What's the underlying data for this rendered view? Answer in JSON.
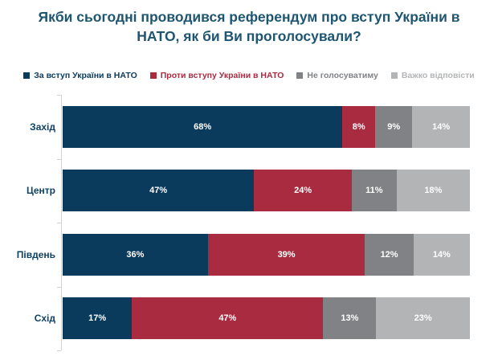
{
  "title": "Якби сьогодні проводився референдум про вступ України в НАТО, як би Ви проголосували?",
  "colors": {
    "title_text": "#1e5570",
    "category_label": "#0d4166",
    "axis": "#d3d3d3",
    "background": "#ffffff",
    "value_label": "#ffffff"
  },
  "chart_data": {
    "type": "bar",
    "stacked": true,
    "orientation": "horizontal",
    "title": "Якби сьогодні проводився референдум про вступ України в НАТО, як би Ви проголосували?",
    "legend_position": "top",
    "grid": false,
    "xlim": [
      0,
      100
    ],
    "value_suffix": "%",
    "categories": [
      "Захід",
      "Центр",
      "Південь",
      "Схід"
    ],
    "series": [
      {
        "name": "За вступ України в НАТО",
        "color": "#0a3a5c",
        "values": [
          68,
          47,
          36,
          17
        ]
      },
      {
        "name": "Проти вступу України в НАТО",
        "color": "#a82b40",
        "values": [
          8,
          24,
          39,
          47
        ]
      },
      {
        "name": "Не голосуватиму",
        "color": "#808285",
        "values": [
          9,
          11,
          12,
          13
        ]
      },
      {
        "name": "Важко відповісти",
        "color": "#b2b4b6",
        "values": [
          14,
          18,
          14,
          23
        ]
      }
    ]
  }
}
